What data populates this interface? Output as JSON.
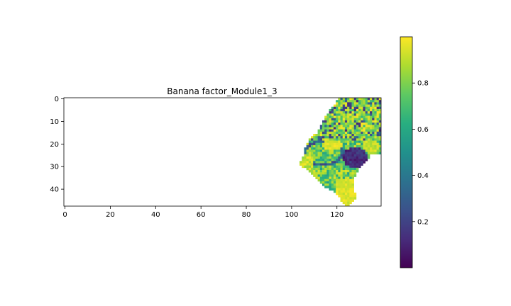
{
  "chart_data": {
    "type": "heatmap",
    "title": "Banana factor_Module1_3",
    "xlabel": "",
    "ylabel": "",
    "xlim": [
      -0.5,
      139.5
    ],
    "ylim": [
      47.5,
      -0.5
    ],
    "x_ticks": [
      0,
      20,
      40,
      60,
      80,
      100,
      120
    ],
    "y_ticks": [
      0,
      10,
      20,
      30,
      40
    ],
    "colormap": "viridis",
    "colorbar": {
      "min": 0.0,
      "max": 1.0,
      "ticks": [
        0.2,
        0.4,
        0.6,
        0.8
      ]
    },
    "grid": false,
    "shape": [
      48,
      140
    ],
    "region_rows": [
      [
        0,
        121,
        139
      ],
      [
        1,
        120,
        139
      ],
      [
        2,
        120,
        139
      ],
      [
        3,
        119,
        139
      ],
      [
        4,
        118,
        139
      ],
      [
        5,
        117,
        139
      ],
      [
        6,
        117,
        139
      ],
      [
        7,
        116,
        139
      ],
      [
        8,
        115,
        139
      ],
      [
        9,
        115,
        139
      ],
      [
        10,
        114,
        139
      ],
      [
        11,
        114,
        139
      ],
      [
        12,
        113,
        139
      ],
      [
        13,
        113,
        139
      ],
      [
        14,
        112,
        139
      ],
      [
        15,
        112,
        139
      ],
      [
        16,
        110,
        139
      ],
      [
        17,
        109,
        139
      ],
      [
        18,
        108,
        139
      ],
      [
        19,
        108,
        139
      ],
      [
        20,
        107,
        139
      ],
      [
        21,
        107,
        139
      ],
      [
        22,
        106,
        139
      ],
      [
        23,
        106,
        139
      ],
      [
        24,
        106,
        139
      ],
      [
        25,
        106,
        134
      ],
      [
        26,
        105,
        134
      ],
      [
        27,
        105,
        133
      ],
      [
        28,
        104,
        132
      ],
      [
        29,
        104,
        131
      ],
      [
        30,
        105,
        130
      ],
      [
        31,
        107,
        129
      ],
      [
        32,
        108,
        129
      ],
      [
        33,
        109,
        128
      ],
      [
        34,
        110,
        128
      ],
      [
        35,
        111,
        127
      ],
      [
        36,
        112,
        127
      ],
      [
        37,
        113,
        127
      ],
      [
        38,
        114,
        127
      ],
      [
        39,
        115,
        127
      ],
      [
        40,
        117,
        127
      ],
      [
        41,
        119,
        127
      ],
      [
        42,
        120,
        128
      ],
      [
        43,
        121,
        128
      ],
      [
        44,
        122,
        128
      ],
      [
        45,
        122,
        127
      ],
      [
        46,
        123,
        126
      ],
      [
        47,
        124,
        125
      ]
    ]
  }
}
